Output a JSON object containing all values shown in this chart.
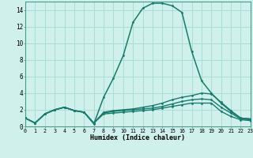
{
  "xlabel": "Humidex (Indice chaleur)",
  "bg_color": "#cff0eb",
  "grid_color": "#aaddd7",
  "line_color": "#1a7a6e",
  "xlim": [
    0,
    23
  ],
  "ylim": [
    0,
    15
  ],
  "xticks": [
    0,
    1,
    2,
    3,
    4,
    5,
    6,
    7,
    8,
    9,
    10,
    11,
    12,
    13,
    14,
    15,
    16,
    17,
    18,
    19,
    20,
    21,
    22,
    23
  ],
  "yticks": [
    0,
    2,
    4,
    6,
    8,
    10,
    12,
    14
  ],
  "curves": [
    {
      "x": [
        0,
        1,
        2,
        3,
        4,
        5,
        6,
        7,
        8,
        9,
        10,
        11,
        12,
        13,
        14,
        15,
        16,
        17,
        18,
        19,
        20,
        21,
        22,
        23
      ],
      "y": [
        1,
        0.4,
        1.5,
        2.0,
        2.3,
        1.9,
        1.7,
        0.3,
        3.5,
        5.8,
        8.5,
        12.5,
        14.2,
        14.8,
        14.8,
        14.5,
        13.7,
        9.0,
        5.5,
        4.0,
        2.8,
        1.8,
        1.0,
        0.9
      ]
    },
    {
      "x": [
        0,
        1,
        2,
        3,
        4,
        5,
        6,
        7,
        8,
        9,
        10,
        11,
        12,
        13,
        14,
        15,
        16,
        17,
        18,
        19,
        20,
        21,
        22,
        23
      ],
      "y": [
        1,
        0.4,
        1.5,
        2.0,
        2.3,
        1.9,
        1.7,
        0.4,
        1.7,
        1.9,
        2.0,
        2.1,
        2.3,
        2.5,
        2.8,
        3.2,
        3.5,
        3.7,
        4.0,
        3.9,
        2.9,
        1.9,
        1.0,
        0.9
      ]
    },
    {
      "x": [
        0,
        1,
        2,
        3,
        4,
        5,
        6,
        7,
        8,
        9,
        10,
        11,
        12,
        13,
        14,
        15,
        16,
        17,
        18,
        19,
        20,
        21,
        22,
        23
      ],
      "y": [
        1,
        0.4,
        1.5,
        2.0,
        2.3,
        1.9,
        1.7,
        0.4,
        1.6,
        1.8,
        1.9,
        2.0,
        2.1,
        2.2,
        2.4,
        2.7,
        3.0,
        3.2,
        3.3,
        3.2,
        2.3,
        1.6,
        0.9,
        0.8
      ]
    },
    {
      "x": [
        0,
        1,
        2,
        3,
        4,
        5,
        6,
        7,
        8,
        9,
        10,
        11,
        12,
        13,
        14,
        15,
        16,
        17,
        18,
        19,
        20,
        21,
        22,
        23
      ],
      "y": [
        1,
        0.4,
        1.5,
        2.0,
        2.3,
        1.9,
        1.7,
        0.4,
        1.5,
        1.6,
        1.7,
        1.8,
        1.9,
        2.0,
        2.2,
        2.4,
        2.6,
        2.8,
        2.8,
        2.8,
        1.8,
        1.2,
        0.8,
        0.7
      ]
    }
  ]
}
